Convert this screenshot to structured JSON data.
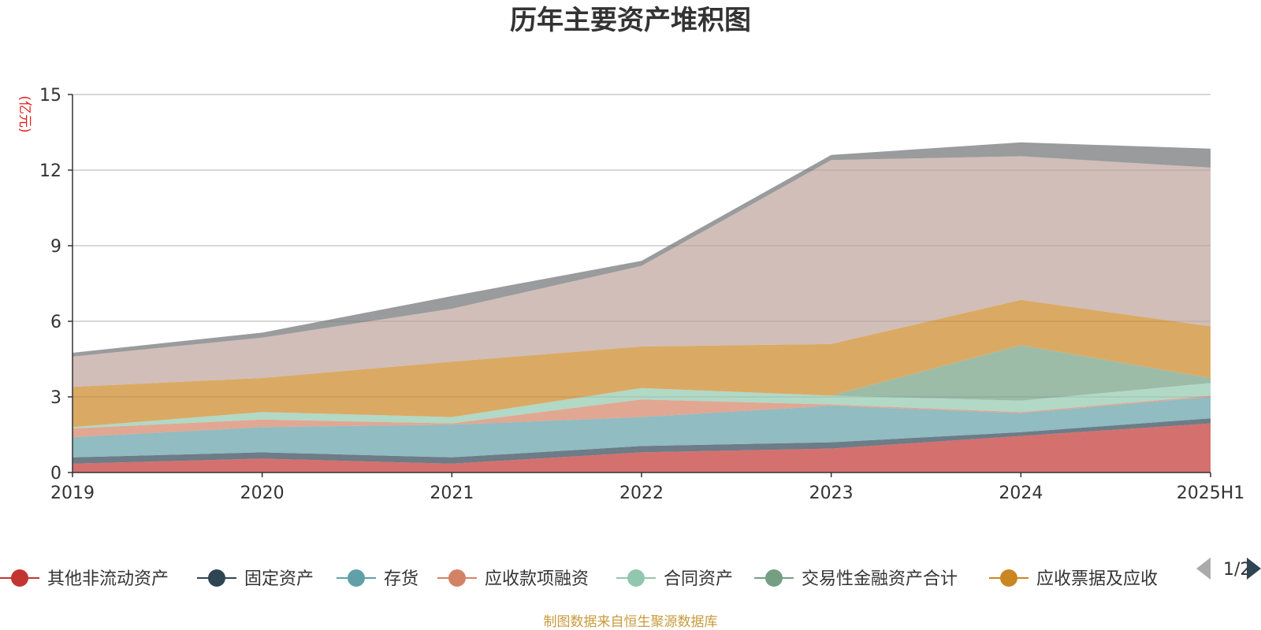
{
  "chart_data": {
    "type": "area",
    "stacked": true,
    "title": "历年主要资产堆积图",
    "ylabel": "(亿元)",
    "xlabel": "",
    "ylim": [
      0,
      15
    ],
    "yticks": [
      "0",
      "3",
      "6",
      "9",
      "12",
      "15"
    ],
    "categories": [
      "2019",
      "2020",
      "2021",
      "2022",
      "2023",
      "2024",
      "2025H1"
    ],
    "grid": true,
    "legend_position": "bottom",
    "series": [
      {
        "name": "其他非流动资产",
        "color": "#c23531",
        "values": [
          0.35,
          0.55,
          0.35,
          0.8,
          0.95,
          1.45,
          1.95
        ]
      },
      {
        "name": "固定资产",
        "color": "#2f4554",
        "values": [
          0.25,
          0.25,
          0.25,
          0.25,
          0.25,
          0.15,
          0.2
        ]
      },
      {
        "name": "存货",
        "color": "#61a0a8",
        "values": [
          0.8,
          1.0,
          1.3,
          1.15,
          1.45,
          0.75,
          0.85
        ]
      },
      {
        "name": "应收款项融资",
        "color": "#d48265",
        "values": [
          0.35,
          0.3,
          0.05,
          0.7,
          0.05,
          0.05,
          0.05
        ]
      },
      {
        "name": "合同资产",
        "color": "#91c7ae",
        "values": [
          0.05,
          0.3,
          0.25,
          0.45,
          0.35,
          0.45,
          0.5
        ]
      },
      {
        "name": "交易性金融资产合计",
        "color": "#749f83",
        "values": [
          0.0,
          0.0,
          0.0,
          0.0,
          0.0,
          2.2,
          0.2
        ]
      },
      {
        "name": "应收票据及应收",
        "color": "#ca8622",
        "values": [
          1.6,
          1.35,
          2.2,
          1.65,
          2.05,
          1.8,
          2.05
        ]
      },
      {
        "name": "",
        "color": "#bda29a",
        "values": [
          1.2,
          1.6,
          2.1,
          3.2,
          7.3,
          5.7,
          6.3
        ]
      },
      {
        "name": "",
        "color": "#6e7074",
        "values": [
          0.15,
          0.2,
          0.5,
          0.2,
          0.2,
          0.55,
          0.75
        ]
      }
    ]
  },
  "legend": {
    "visible_count": 7,
    "pager": "1/2"
  },
  "footer": {
    "source": "制图数据来自恒生聚源数据库"
  }
}
